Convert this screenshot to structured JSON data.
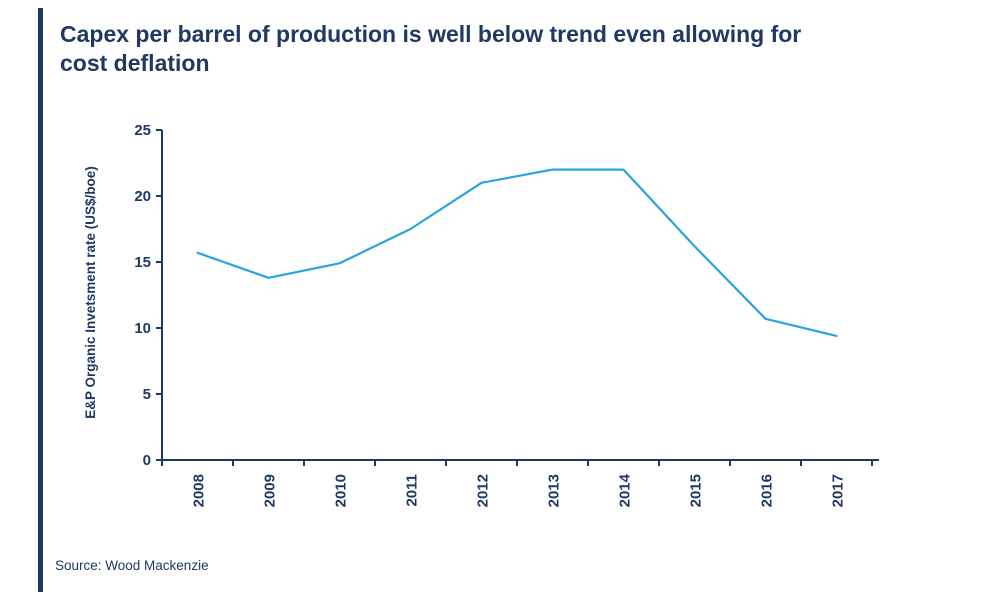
{
  "page": {
    "title": "Capex per barrel of production is well below trend even allowing for cost deflation",
    "source": "Source: Wood Mackenzie",
    "accent_color": "#1f3864"
  },
  "chart_data": {
    "type": "line",
    "title": "Capex per barrel of production is well below trend even allowing for cost deflation",
    "categories": [
      "2008",
      "2009",
      "2010",
      "2011",
      "2012",
      "2013",
      "2014",
      "2015",
      "2016",
      "2017"
    ],
    "series": [
      {
        "name": "E&P Organic Invetsment rate (US$/boe)",
        "values": [
          15.7,
          13.8,
          14.9,
          17.5,
          21.0,
          22.0,
          22.0,
          16.2,
          10.7,
          9.4
        ]
      }
    ],
    "xlabel": "",
    "ylabel": "E&P Organic Invetsment rate (US$/boe)",
    "ylim": [
      0,
      25
    ],
    "ytick_step": 5,
    "grid": false,
    "legend": "none",
    "line_color": "#2ca3dc",
    "axis_color": "#1f3864",
    "source": "Source: Wood Mackenzie"
  }
}
